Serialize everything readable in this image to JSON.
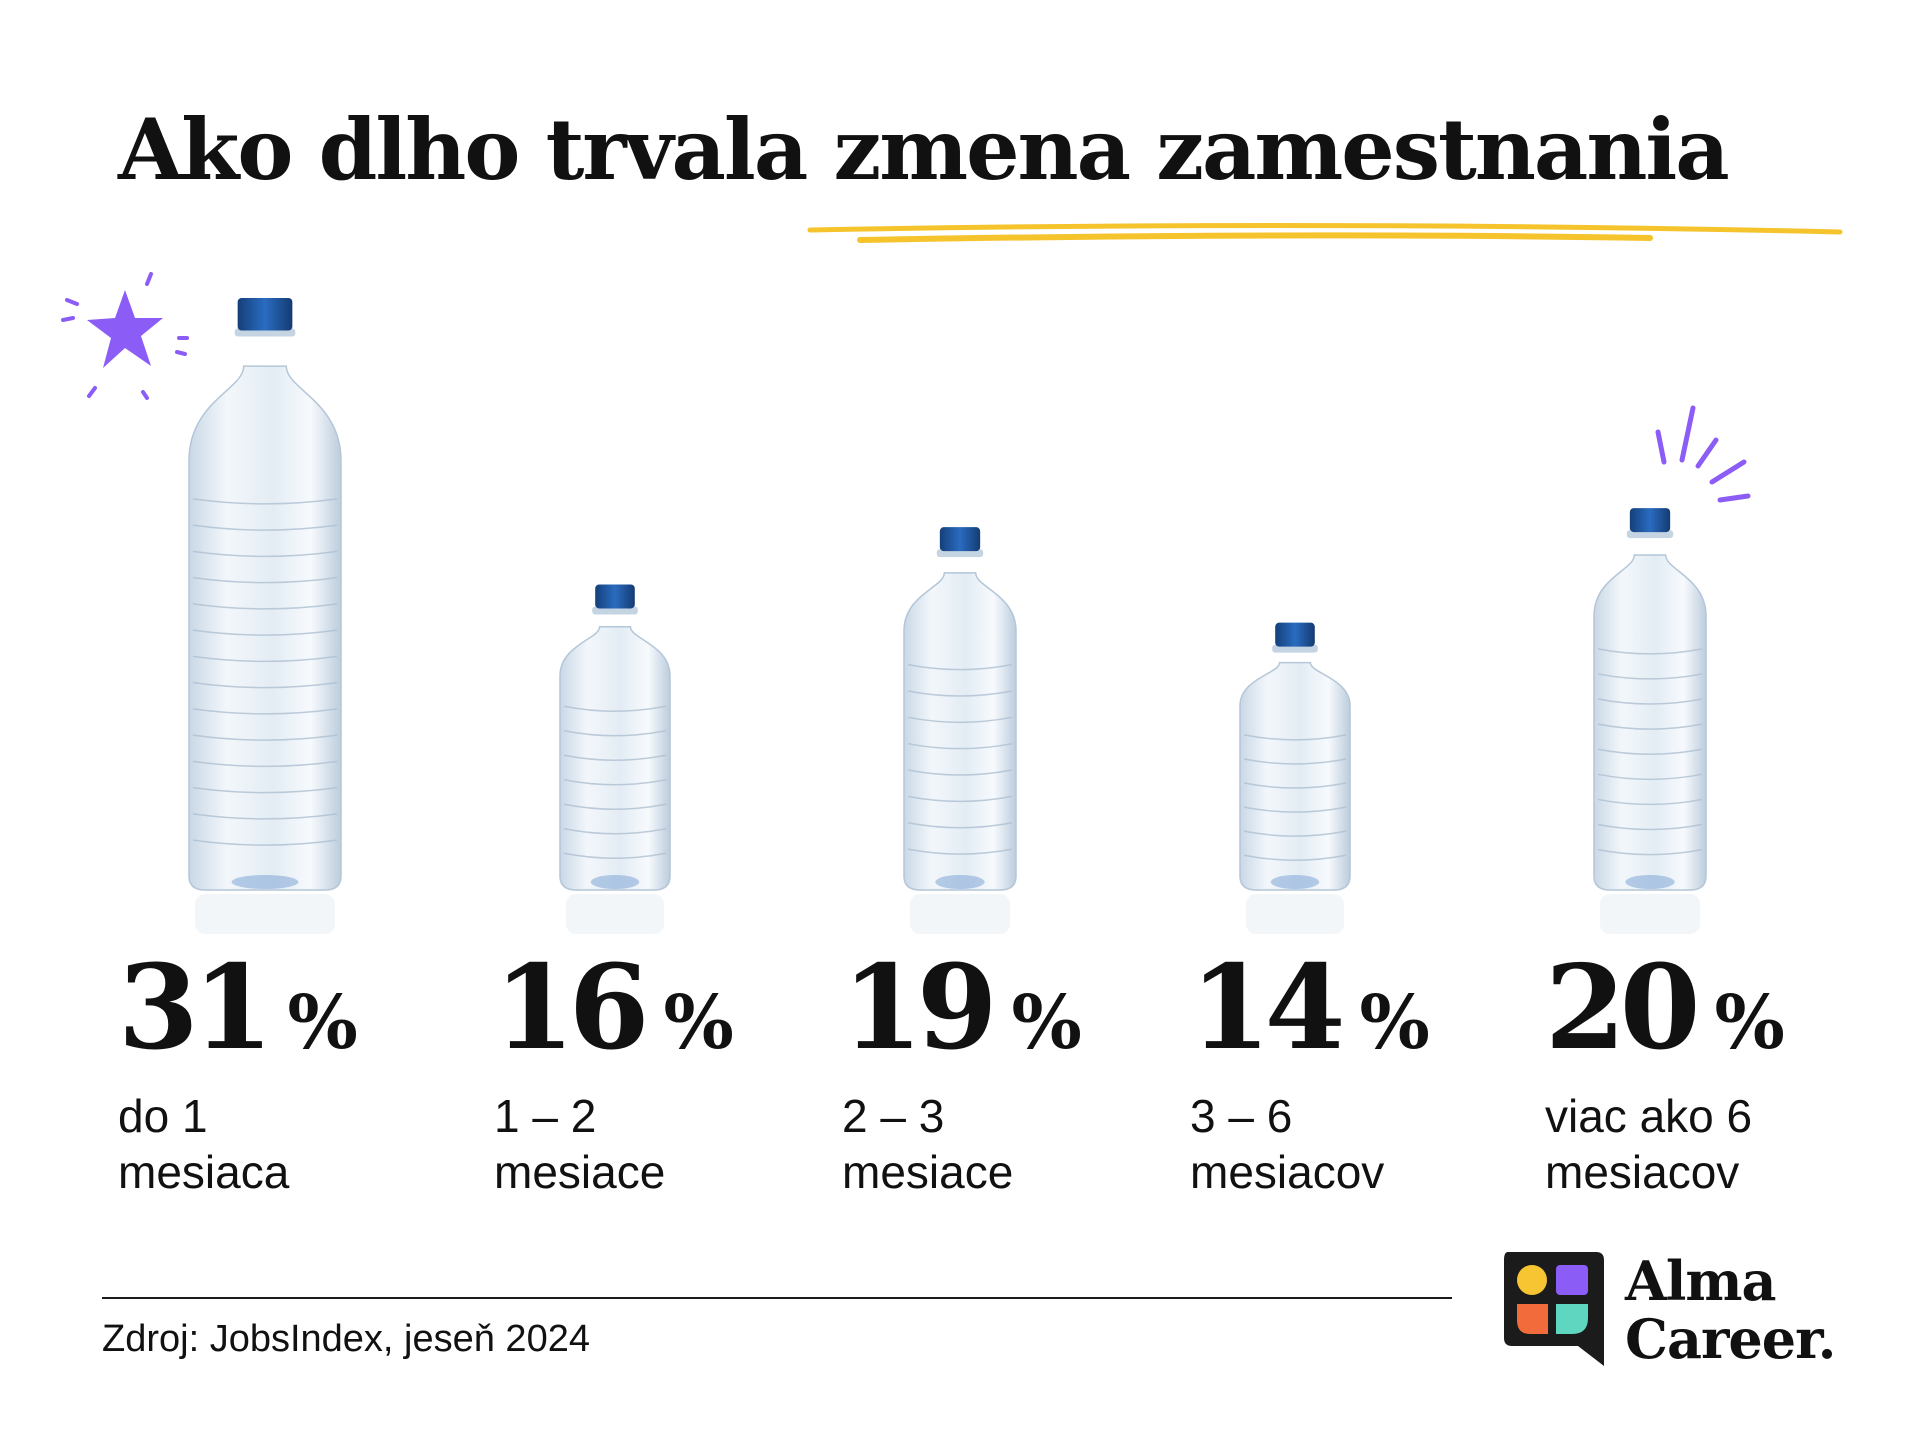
{
  "header": {
    "title": "Ako dlho trvala zmena zamestnania"
  },
  "colors": {
    "accent_underline": "#F5C32C",
    "sparkle": "#8B5CF6",
    "bottle_cap": "#1F5FAE",
    "text": "#111111",
    "logo_yellow": "#F7C531",
    "logo_purple": "#8B5CF6",
    "logo_orange": "#F26B3A",
    "logo_teal": "#5ED6C0"
  },
  "chart_data": {
    "type": "bar",
    "categories": [
      "do 1 mesiaca",
      "1 – 2 mesiace",
      "2 – 3 mesiace",
      "3 – 6 mesiacov",
      "viac ako 6 mesiacov"
    ],
    "values": [
      31,
      16,
      19,
      14,
      20
    ],
    "unit": "%",
    "ylim": [
      0,
      31
    ],
    "title": "Ako dlho trvala zmena zamestnania",
    "xlabel": "",
    "ylabel": "",
    "grid": false,
    "legend": "none",
    "mark_style": "water-bottle-icons",
    "bars": [
      {
        "value": "31",
        "sign": "%",
        "label_line1": "do 1",
        "label_line2": "mesiaca"
      },
      {
        "value": "16",
        "sign": "%",
        "label_line1": "1 – 2",
        "label_line2": "mesiace"
      },
      {
        "value": "19",
        "sign": "%",
        "label_line1": "2 – 3",
        "label_line2": "mesiace"
      },
      {
        "value": "14",
        "sign": "%",
        "label_line1": "3 – 6",
        "label_line2": "mesiacov"
      },
      {
        "value": "20",
        "sign": "%",
        "label_line1": "viac ako 6",
        "label_line2": "mesiacov"
      }
    ]
  },
  "footer": {
    "source": "Zdroj: JobsIndex, jeseň 2024"
  },
  "logo": {
    "line1": "Alma",
    "line2": "Career."
  }
}
